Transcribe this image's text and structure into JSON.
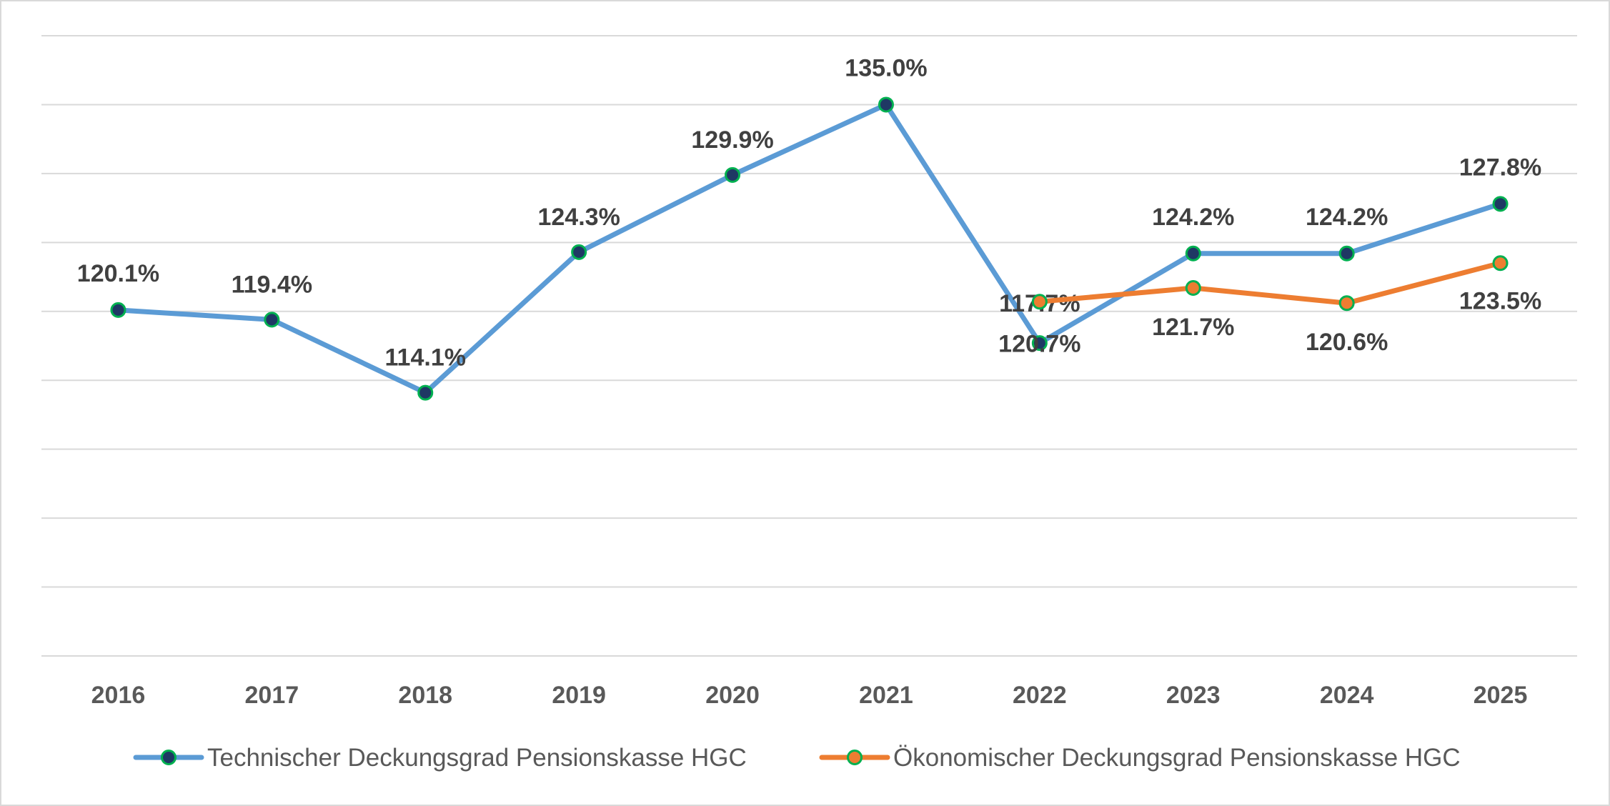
{
  "chart_data": {
    "type": "line",
    "categories": [
      "2016",
      "2017",
      "2018",
      "2019",
      "2020",
      "2021",
      "2022",
      "2023",
      "2024",
      "2025"
    ],
    "series": [
      {
        "name": "Technischer Deckungsgrad Pensionskasse HGC",
        "color": "#5b9bd5",
        "marker_fill": "#1f3864",
        "values": [
          120.1,
          119.4,
          114.1,
          124.3,
          129.9,
          135.0,
          117.7,
          124.2,
          124.2,
          127.8
        ],
        "labels": [
          "120.1%",
          "119.4%",
          "114.1%",
          "124.3%",
          "129.9%",
          "135.0%",
          "117.7%",
          "124.2%",
          "124.2%",
          "127.8%"
        ]
      },
      {
        "name": "Ökonomischer Deckungsgrad Pensionskasse HGC",
        "color": "#ed7d31",
        "marker_fill": "#ed7d31",
        "values": [
          null,
          null,
          null,
          null,
          null,
          null,
          120.7,
          121.7,
          120.6,
          123.5
        ],
        "labels": [
          null,
          null,
          null,
          null,
          null,
          null,
          "120.7%",
          "121.7%",
          "120.6%",
          "123.5%"
        ]
      }
    ],
    "marker_edge_color": "#00b050",
    "ylim": [
      95,
      140
    ],
    "y_gridline_step": 5,
    "y_axis_labels_shown": false,
    "grid": true,
    "legend_position": "bottom"
  }
}
